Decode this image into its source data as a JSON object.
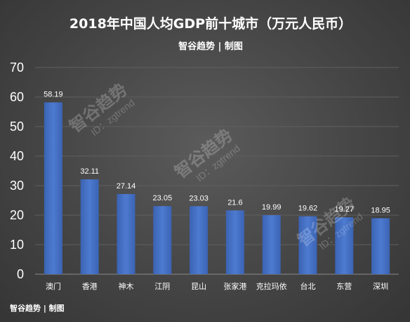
{
  "chart_data": {
    "type": "bar",
    "title": "2018年中国人均GDP前十城市（万元人民币）",
    "subtitle": "智谷趋势 | 制图",
    "categories": [
      "澳门",
      "香港",
      "神木",
      "江阴",
      "昆山",
      "张家港",
      "克拉玛依",
      "台北",
      "东营",
      "深圳"
    ],
    "values": [
      58.19,
      32.11,
      27.14,
      23.05,
      23.03,
      21.6,
      19.99,
      19.62,
      19.27,
      18.95
    ],
    "value_labels": [
      "58.19",
      "32.11",
      "27.14",
      "23.05",
      "23.03",
      "21.6",
      "19.99",
      "19.62",
      "19.27",
      "18.95"
    ],
    "ylim": [
      0,
      70
    ],
    "yticks": [
      "0",
      "10",
      "20",
      "30",
      "40",
      "50",
      "60",
      "70"
    ],
    "grid": true,
    "bar_color": "#4472c4"
  },
  "footer": "智谷趋势 | 制图",
  "watermark": {
    "main": "智谷趋势",
    "sub": "ID：zgtrend"
  }
}
